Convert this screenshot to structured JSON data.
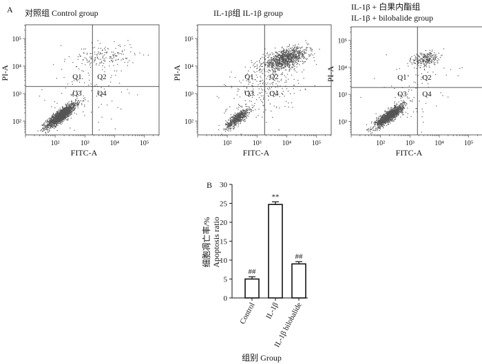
{
  "panel_a_label": "A",
  "panel_b_label": "B",
  "chart_data": [
    {
      "type": "scatter",
      "title": "对照组 Control group",
      "xlabel": "FITC-A",
      "ylabel": "PI-A",
      "x_scale": "log",
      "y_scale": "log",
      "xlim": [
        10,
        316000
      ],
      "ylim": [
        31.6,
        316000
      ],
      "x_ticks": [
        {
          "label": "10²",
          "value": 100
        },
        {
          "label": "10³",
          "value": 1000
        },
        {
          "label": "10⁴",
          "value": 10000
        },
        {
          "label": "10⁵",
          "value": 100000
        }
      ],
      "y_ticks": [
        {
          "label": "10²",
          "value": 100
        },
        {
          "label": "10³",
          "value": 1000
        },
        {
          "label": "10⁴",
          "value": 10000
        },
        {
          "label": "10⁵",
          "value": 100000
        }
      ],
      "gate": {
        "x": 1800,
        "y": 1800
      },
      "quadrants": [
        "Q1",
        "Q2",
        "Q3",
        "Q4"
      ],
      "populations": [
        {
          "name": "live",
          "lx_mean": 2.2,
          "lx_sd": 0.25,
          "ly_mean": 2.2,
          "ly_sd": 0.22,
          "rho": 0.85,
          "count": 1500
        },
        {
          "name": "apoptotic",
          "lx_mean": 3.7,
          "lx_sd": 0.5,
          "ly_mean": 4.35,
          "ly_sd": 0.22,
          "rho": 0.1,
          "count": 160
        },
        {
          "name": "scatter",
          "lx_mean": 3.0,
          "lx_sd": 0.7,
          "ly_mean": 3.2,
          "ly_sd": 0.7,
          "rho": 0.2,
          "count": 110
        }
      ]
    },
    {
      "type": "scatter",
      "title": "IL-1β组 IL-1β group",
      "xlabel": "FITC-A",
      "ylabel": "PI-A",
      "x_scale": "log",
      "y_scale": "log",
      "xlim": [
        10,
        316000
      ],
      "ylim": [
        31.6,
        316000
      ],
      "x_ticks": [
        {
          "label": "10²",
          "value": 100
        },
        {
          "label": "10³",
          "value": 1000
        },
        {
          "label": "10⁴",
          "value": 10000
        },
        {
          "label": "10⁵",
          "value": 100000
        }
      ],
      "y_ticks": [
        {
          "label": "10²",
          "value": 100
        },
        {
          "label": "10³",
          "value": 1000
        },
        {
          "label": "10⁴",
          "value": 10000
        },
        {
          "label": "10⁵",
          "value": 100000
        }
      ],
      "gate": {
        "x": 1800,
        "y": 1800
      },
      "quadrants": [
        "Q1",
        "Q2",
        "Q3",
        "Q4"
      ],
      "populations": [
        {
          "name": "live",
          "lx_mean": 2.35,
          "lx_sd": 0.2,
          "ly_mean": 2.1,
          "ly_sd": 0.18,
          "rho": 0.8,
          "count": 600
        },
        {
          "name": "apoptotic",
          "lx_mean": 3.95,
          "lx_sd": 0.38,
          "ly_mean": 4.25,
          "ly_sd": 0.2,
          "rho": 0.55,
          "count": 1000
        },
        {
          "name": "scatter",
          "lx_mean": 3.3,
          "lx_sd": 0.65,
          "ly_mean": 3.3,
          "ly_sd": 0.6,
          "rho": 0.4,
          "count": 250
        }
      ]
    },
    {
      "type": "scatter",
      "title": "IL-1β + 白果内酯组",
      "subtitle": "IL-1β + bilobalide group",
      "xlabel": "FITC-A",
      "ylabel": "PI-A",
      "x_scale": "log",
      "y_scale": "log",
      "xlim": [
        10,
        316000
      ],
      "ylim": [
        31.6,
        316000
      ],
      "x_ticks": [
        {
          "label": "10²",
          "value": 100
        },
        {
          "label": "10³",
          "value": 1000
        },
        {
          "label": "10⁴",
          "value": 10000
        },
        {
          "label": "10⁵",
          "value": 100000
        }
      ],
      "y_ticks": [
        {
          "label": "10²",
          "value": 100
        },
        {
          "label": "10³",
          "value": 1000
        },
        {
          "label": "10⁴",
          "value": 10000
        },
        {
          "label": "10⁵",
          "value": 100000
        }
      ],
      "gate": {
        "x": 1800,
        "y": 1800
      },
      "quadrants": [
        "Q1",
        "Q2",
        "Q3",
        "Q4"
      ],
      "populations": [
        {
          "name": "live",
          "lx_mean": 2.3,
          "lx_sd": 0.24,
          "ly_mean": 2.2,
          "ly_sd": 0.2,
          "rho": 0.85,
          "count": 1300
        },
        {
          "name": "apoptotic",
          "lx_mean": 3.55,
          "lx_sd": 0.22,
          "ly_mean": 4.3,
          "ly_sd": 0.15,
          "rho": 0.3,
          "count": 260
        },
        {
          "name": "scatter",
          "lx_mean": 3.0,
          "lx_sd": 0.6,
          "ly_mean": 3.2,
          "ly_sd": 0.6,
          "rho": 0.2,
          "count": 80
        }
      ]
    },
    {
      "type": "bar",
      "ylabel": "细胞凋亡率/%",
      "ylabel_en": "Apoptosis ratio",
      "xlabel": "组别 Group",
      "categories": [
        "Control",
        "IL-1β",
        "IL-1β bilobalide"
      ],
      "values": [
        5.0,
        24.7,
        9.0
      ],
      "errors": [
        0.6,
        0.7,
        0.6
      ],
      "annotations": [
        "##",
        "**",
        "##"
      ],
      "ylim": [
        0,
        30
      ],
      "yticks": [
        0,
        5,
        10,
        15,
        20,
        25,
        30
      ]
    }
  ]
}
